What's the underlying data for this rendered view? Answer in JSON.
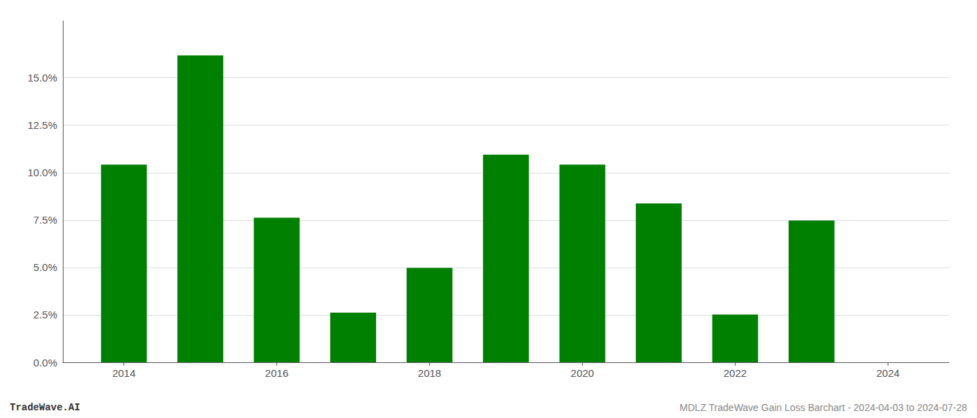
{
  "chart_data": {
    "type": "bar",
    "x": [
      2014,
      2015,
      2016,
      2017,
      2018,
      2019,
      2020,
      2021,
      2022,
      2023,
      2024
    ],
    "values": [
      0.1042,
      0.1618,
      0.0762,
      0.0262,
      0.0498,
      0.1095,
      0.1042,
      0.0838,
      0.0252,
      0.0748,
      0.0
    ],
    "color": "#008000",
    "xlim": [
      2013.2,
      2024.8
    ],
    "xticks": [
      2014,
      2016,
      2018,
      2020,
      2022,
      2024
    ],
    "ylim": [
      0,
      0.18
    ],
    "yticks": [
      {
        "value": 0.0,
        "label": "0.0%"
      },
      {
        "value": 0.025,
        "label": "2.5%"
      },
      {
        "value": 0.05,
        "label": "5.0%"
      },
      {
        "value": 0.075,
        "label": "7.5%"
      },
      {
        "value": 0.1,
        "label": "10.0%"
      },
      {
        "value": 0.125,
        "label": "12.5%"
      },
      {
        "value": 0.15,
        "label": "15.0%"
      }
    ],
    "grid": true,
    "annotations": [
      "TradeWave.AI",
      "MDLZ TradeWave Gain Loss Barchart - 2024-04-03 to 2024-07-28"
    ]
  }
}
